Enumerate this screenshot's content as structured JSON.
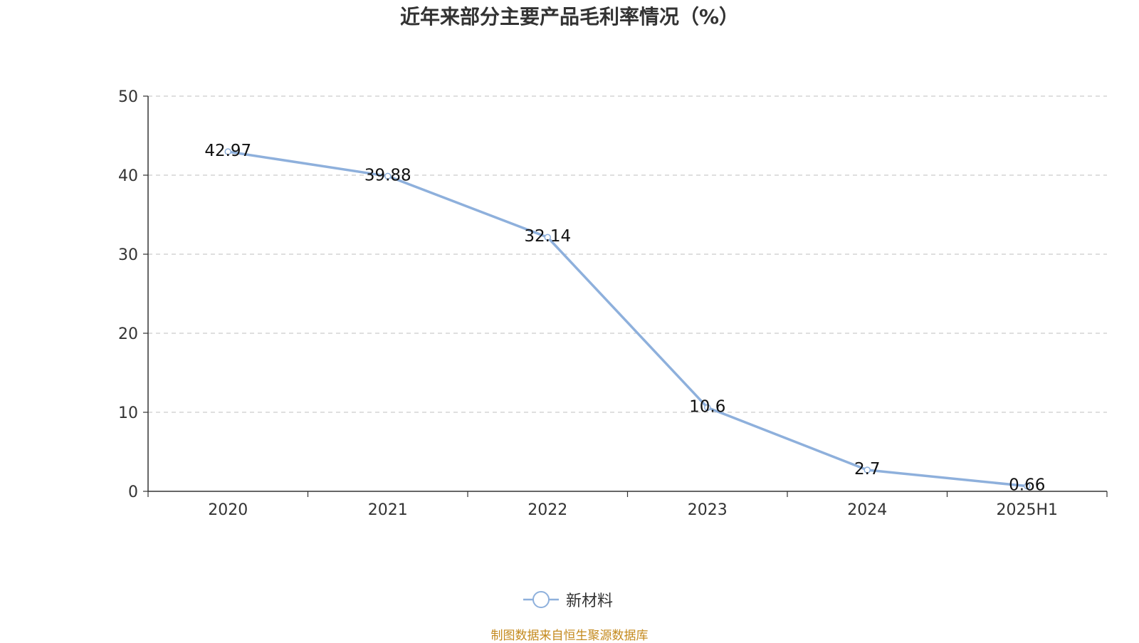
{
  "title": "近年来部分主要产品毛利率情况（%）",
  "source": "制图数据来自恒生聚源数据库",
  "chart_data": {
    "type": "line",
    "title": "近年来部分主要产品毛利率情况（%）",
    "categories": [
      "2020",
      "2021",
      "2022",
      "2023",
      "2024",
      "2025H1"
    ],
    "series": [
      {
        "name": "新材料",
        "values": [
          42.97,
          39.88,
          32.14,
          10.6,
          2.7,
          0.66
        ],
        "color": "#8eb0dc"
      }
    ],
    "value_labels": [
      "42.97",
      "39.88",
      "32.14",
      "10.6",
      "2.7",
      "0.66"
    ],
    "ylim": [
      0,
      50
    ],
    "yticks": [
      0,
      10,
      20,
      30,
      40,
      50
    ],
    "grid": true,
    "legend": "bottom-center",
    "axis_color": "#333333",
    "grid_color": "#cccccc"
  }
}
